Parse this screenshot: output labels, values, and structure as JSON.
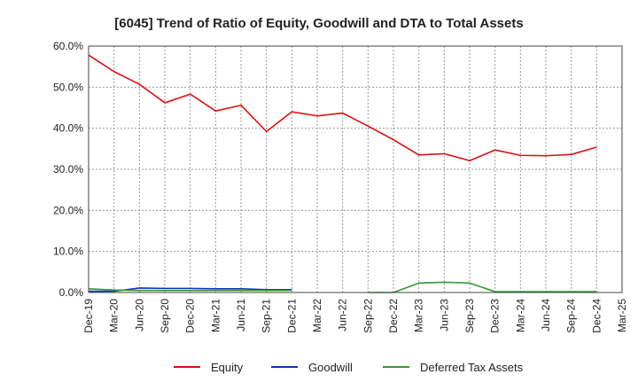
{
  "chart_data": {
    "type": "line",
    "title": "[6045]  Trend of Ratio of Equity, Goodwill and DTA to Total Assets",
    "xlabel": "",
    "ylabel": "",
    "ylim": [
      0,
      60
    ],
    "yticks": [
      0,
      10,
      20,
      30,
      40,
      50,
      60
    ],
    "ytick_labels": [
      "0.0%",
      "10.0%",
      "20.0%",
      "30.0%",
      "40.0%",
      "50.0%",
      "60.0%"
    ],
    "grid": true,
    "legend_position": "bottom-center",
    "categories": [
      "Dec-19",
      "Mar-20",
      "Jun-20",
      "Sep-20",
      "Dec-20",
      "Mar-21",
      "Jun-21",
      "Sep-21",
      "Dec-21",
      "Mar-22",
      "Jun-22",
      "Sep-22",
      "Dec-22",
      "Mar-23",
      "Jun-23",
      "Sep-23",
      "Dec-23",
      "Mar-24",
      "Jun-24",
      "Sep-24",
      "Dec-24",
      "Mar-25"
    ],
    "series": [
      {
        "name": "Equity",
        "color": "#dd1111",
        "values": [
          57.8,
          53.8,
          50.7,
          46.2,
          48.3,
          44.2,
          45.6,
          39.2,
          44.0,
          43.0,
          43.7,
          40.5,
          37.2,
          33.5,
          33.8,
          32.1,
          34.7,
          33.4,
          33.3,
          33.6,
          35.4,
          null
        ]
      },
      {
        "name": "Goodwill",
        "color": "#1133bb",
        "values": [
          0.3,
          0.3,
          1.1,
          1.0,
          1.0,
          0.9,
          0.9,
          0.7,
          0.7,
          null,
          null,
          null,
          null,
          null,
          null,
          null,
          null,
          null,
          null,
          null,
          null,
          null
        ]
      },
      {
        "name": "Deferred Tax Assets",
        "color": "#339933",
        "values": [
          0.9,
          0.6,
          0.5,
          0.5,
          0.5,
          0.5,
          0.5,
          0.5,
          0.5,
          null,
          null,
          0.0,
          0.0,
          2.3,
          2.5,
          2.3,
          0.2,
          0.2,
          0.2,
          0.2,
          0.2,
          null
        ]
      }
    ]
  }
}
